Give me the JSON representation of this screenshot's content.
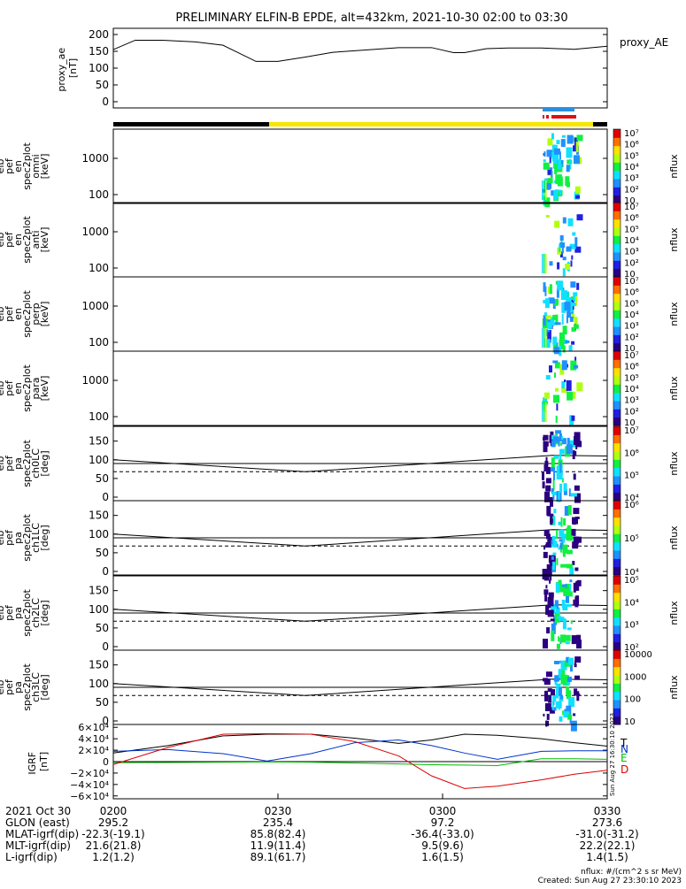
{
  "title": "PRELIMINARY ELFIN-B EPDE, alt=432km, 2021-10-30 02:00 to 03:30",
  "colors": {
    "black": "#000000",
    "yellow": "#f6e600",
    "ae_line": "#000000",
    "grf_t": "#000000",
    "grf_n": "#0033cc",
    "grf_e": "#00bb00",
    "grf_d": "#dd0000",
    "markers_blue": "#2a8fe0",
    "markers_red": "#e01010"
  },
  "chart_data": [
    {
      "type": "line",
      "name": "proxy_ae",
      "ylabel_lines": [
        "proxy_ae",
        "[nT]"
      ],
      "legend": "proxy_AE",
      "ylim": [
        0,
        210
      ],
      "yticks": [
        "0",
        "50",
        "100",
        "150",
        "200"
      ],
      "ytick_values": [
        0,
        50,
        100,
        150,
        200
      ],
      "x_minutes": [
        0,
        4,
        9,
        15,
        20,
        26,
        30,
        35,
        40,
        46,
        52,
        58,
        62,
        64,
        68,
        72,
        78,
        84,
        90
      ],
      "values": [
        155,
        183,
        183,
        178,
        168,
        120,
        120,
        133,
        147,
        154,
        161,
        161,
        146,
        146,
        158,
        160,
        160,
        156,
        165
      ]
    },
    {
      "type": "heatmap",
      "name": "elb_pef_en_spec2plot_omni",
      "ylabel_lines": [
        "elb",
        "pef",
        "en",
        "spec2plot",
        "omni",
        "[keV]"
      ],
      "yticks": [
        "100",
        "1000"
      ],
      "colorbar": {
        "label": "nflux",
        "ticks": [
          "10",
          "10²",
          "10³",
          "10⁴",
          "10⁵",
          "10⁶",
          "10⁷"
        ]
      }
    },
    {
      "type": "heatmap",
      "name": "elb_pef_en_spec2plot_anti",
      "ylabel_lines": [
        "elb",
        "pef",
        "en",
        "spec2plot",
        "anti",
        "[keV]"
      ],
      "yticks": [
        "100",
        "1000"
      ],
      "colorbar": {
        "label": "nflux",
        "ticks": [
          "10",
          "10²",
          "10³",
          "10⁴",
          "10⁵",
          "10⁶",
          "10⁷"
        ]
      }
    },
    {
      "type": "heatmap",
      "name": "elb_pef_en_spec2plot_perp",
      "ylabel_lines": [
        "elb",
        "pef",
        "en",
        "spec2plot",
        "perp",
        "[keV]"
      ],
      "yticks": [
        "100",
        "1000"
      ],
      "colorbar": {
        "label": "nflux",
        "ticks": [
          "10",
          "10²",
          "10³",
          "10⁴",
          "10⁵",
          "10⁶",
          "10⁷"
        ]
      }
    },
    {
      "type": "heatmap",
      "name": "elb_pef_en_spec2plot_para",
      "ylabel_lines": [
        "elb",
        "pef",
        "en",
        "spec2plot",
        "para",
        "[keV]"
      ],
      "yticks": [
        "100",
        "1000"
      ],
      "colorbar": {
        "label": "nflux",
        "ticks": [
          "10",
          "10²",
          "10³",
          "10⁴",
          "10⁵",
          "10⁶",
          "10⁷"
        ]
      }
    },
    {
      "type": "heatmap",
      "name": "elb_pef_pa_spec2plot_ch0LC",
      "ylabel_lines": [
        "elb",
        "pef",
        "pa",
        "spec2plot",
        "ch0LC",
        "[deg]"
      ],
      "yticks": [
        "0",
        "50",
        "100",
        "150"
      ],
      "ylim": [
        0,
        180
      ],
      "colorbar": {
        "label": "nflux",
        "ticks": [
          "10⁴",
          "10⁵",
          "10⁶",
          "10⁷"
        ]
      }
    },
    {
      "type": "heatmap",
      "name": "elb_pef_pa_spec2plot_ch1LC",
      "ylabel_lines": [
        "elb",
        "pef",
        "pa",
        "spec2plot",
        "ch1LC",
        "[deg]"
      ],
      "yticks": [
        "0",
        "50",
        "100",
        "150"
      ],
      "ylim": [
        0,
        180
      ],
      "colorbar": {
        "label": "nflux",
        "ticks": [
          "10⁴",
          "10⁵",
          "10⁶"
        ]
      }
    },
    {
      "type": "heatmap",
      "name": "elb_pef_pa_spec2plot_ch2LC",
      "ylabel_lines": [
        "elb",
        "pef",
        "pa",
        "spec2plot",
        "ch2LC",
        "[deg]"
      ],
      "yticks": [
        "0",
        "50",
        "100",
        "150"
      ],
      "ylim": [
        0,
        180
      ],
      "colorbar": {
        "label": "nflux",
        "ticks": [
          "10²",
          "10³",
          "10⁴",
          "10⁵"
        ]
      }
    },
    {
      "type": "heatmap",
      "name": "elb_pef_pa_spec2plot_ch3LC",
      "ylabel_lines": [
        "elb",
        "pef",
        "pa",
        "spec2plot",
        "ch3LC",
        "[deg]"
      ],
      "yticks": [
        "0",
        "50",
        "100",
        "150"
      ],
      "ylim": [
        0,
        180
      ],
      "colorbar": {
        "label": "nflux",
        "ticks": [
          "10",
          "100",
          "1000",
          "10000"
        ]
      }
    },
    {
      "type": "line",
      "name": "IGRF",
      "ylabel_lines": [
        "IGRF",
        "[nT]"
      ],
      "ylim": [
        -65000,
        65000
      ],
      "yticks": [
        "−6×10⁴",
        "−4×10⁴",
        "−2×10⁴",
        "0",
        "2×10⁴",
        "4×10⁴",
        "6×10⁴"
      ],
      "ytick_values": [
        -60000,
        -40000,
        -20000,
        0,
        20000,
        40000,
        60000
      ],
      "legend": [
        "T",
        "N",
        "E",
        "D"
      ],
      "x_minutes": [
        0,
        10,
        20,
        28,
        36,
        44,
        52,
        58,
        64,
        70,
        78,
        84,
        90
      ],
      "series": [
        {
          "name": "T",
          "values": [
            15000,
            28000,
            45000,
            48000,
            48000,
            41000,
            32000,
            38000,
            48000,
            46000,
            40000,
            33000,
            27000
          ]
        },
        {
          "name": "N",
          "values": [
            18000,
            21000,
            14000,
            1000,
            14000,
            33000,
            38000,
            28000,
            15000,
            4000,
            18000,
            19000,
            19000
          ]
        },
        {
          "name": "E",
          "values": [
            -2000,
            -1500,
            -1000,
            -500,
            -1000,
            -2500,
            -4000,
            -5500,
            -6000,
            -7000,
            5000,
            5000,
            4000
          ]
        },
        {
          "name": "D",
          "values": [
            -5000,
            25000,
            48000,
            49000,
            48000,
            35000,
            10000,
            -25000,
            -47000,
            -43000,
            -32000,
            -22000,
            -15000
          ]
        }
      ]
    }
  ],
  "footer": {
    "rows": [
      {
        "label": "2021 Oct 30",
        "values": [
          "0200",
          "0230",
          "0300",
          "0330"
        ]
      },
      {
        "label": "GLON (east)",
        "values": [
          "295.2",
          "235.4",
          "97.2",
          "273.6"
        ]
      },
      {
        "label": "MLAT-igrf(dip)",
        "values": [
          "-22.3(-19.1)",
          "85.8(82.4)",
          "-36.4(-33.0)",
          "-31.0(-31.2)"
        ]
      },
      {
        "label": "MLT-igrf(dip)",
        "values": [
          "21.6(21.8)",
          "11.9(11.4)",
          "9.5(9.6)",
          "22.2(22.1)"
        ]
      },
      {
        "label": "L-igrf(dip)",
        "values": [
          "1.2(1.2)",
          "89.1(61.7)",
          "1.6(1.5)",
          "1.4(1.5)"
        ]
      }
    ],
    "unit_note": "nflux: #/(cm^2 s sr MeV)",
    "created": "Created: Sun Aug 27 23:30:10 2023",
    "side_stamp": "Sun Aug 27 16:30:10 2023"
  }
}
